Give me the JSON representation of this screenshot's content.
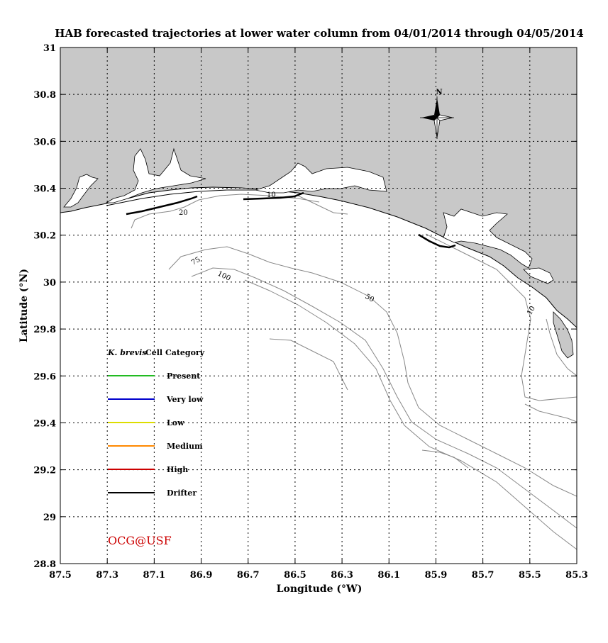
{
  "title": "HAB forecasted trajectories at lower water column from 04/01/2014 through 04/05/2014",
  "axes": {
    "xlabel": "Longitude (°W)",
    "ylabel": "Latitude (°N)",
    "x_ticks": [
      "87.5",
      "87.3",
      "87.1",
      "86.9",
      "86.7",
      "86.5",
      "86.3",
      "86.1",
      "85.9",
      "85.7",
      "85.5",
      "85.3"
    ],
    "y_ticks": [
      "31",
      "30.8",
      "30.6",
      "30.4",
      "30.2",
      "30",
      "29.8",
      "29.6",
      "29.4",
      "29.2",
      "29",
      "28.8"
    ],
    "xlim": [
      87.5,
      85.3
    ],
    "ylim": [
      28.8,
      31
    ],
    "grid": true
  },
  "compass": {
    "label": "N"
  },
  "contours": {
    "labels": [
      "10",
      "20",
      "75",
      "100",
      "50",
      "10"
    ]
  },
  "legend": {
    "title_species": "K. brevis",
    "title_rest": "Cell Category",
    "items": [
      {
        "label": "Present",
        "color": "#22bb22"
      },
      {
        "label": "Very low",
        "color": "#0000cc"
      },
      {
        "label": "Low",
        "color": "#dddd00"
      },
      {
        "label": "Medium",
        "color": "#ff8800"
      },
      {
        "label": "High",
        "color": "#cc0000"
      },
      {
        "label": "Drifter",
        "color": "#000000"
      }
    ]
  },
  "credit": "OCG@USF",
  "colors": {
    "land": "#c8c8c8",
    "water": "#ffffff",
    "contour": "#888888",
    "credit": "#cc0000"
  }
}
